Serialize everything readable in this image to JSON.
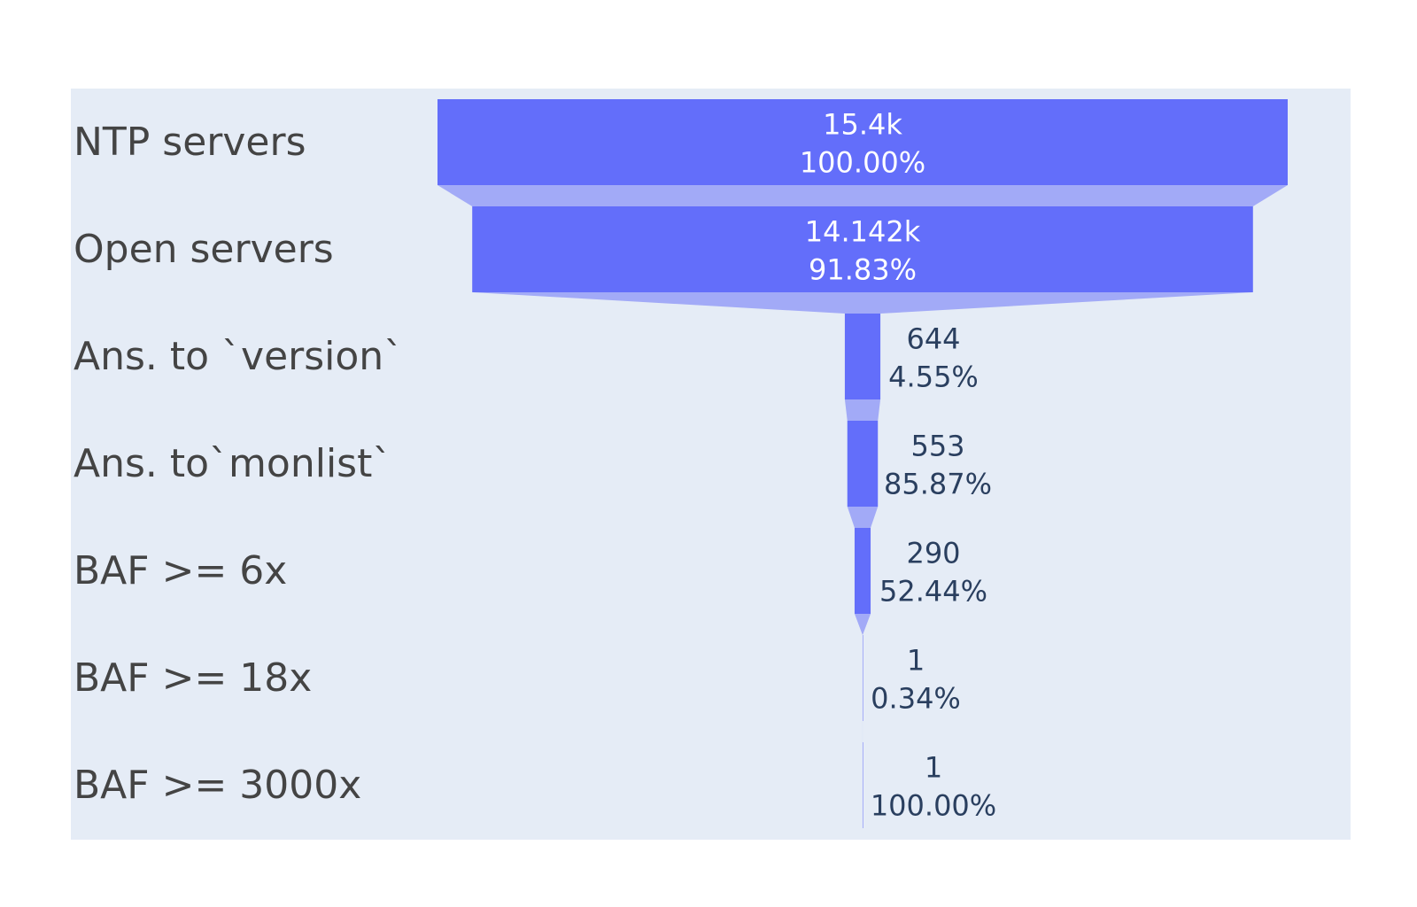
{
  "chart_data": {
    "type": "funnel",
    "title": "",
    "categories": [
      "NTP servers",
      "Open servers",
      "Ans. to `version`",
      "Ans. to`monlist`",
      "BAF >= 6x",
      "BAF >= 18x",
      "BAF >= 3000x"
    ],
    "values": [
      15400,
      14142,
      644,
      553,
      290,
      1,
      1
    ],
    "value_labels": [
      "15.4k",
      "14.142k",
      "644",
      "553",
      "290",
      "1",
      "1"
    ],
    "percent_labels": [
      "100.00%",
      "91.83%",
      "4.55%",
      "85.87%",
      "52.44%",
      "0.34%",
      "100.00%"
    ],
    "percent_basis": "percent previous",
    "colors": {
      "bar": "#636efa",
      "connector": "#a2aaf7",
      "plot_background": "#e5ecf6",
      "label_inside": "#ffffff",
      "label_outside": "#2a3f5f",
      "category_text": "#444444"
    }
  }
}
